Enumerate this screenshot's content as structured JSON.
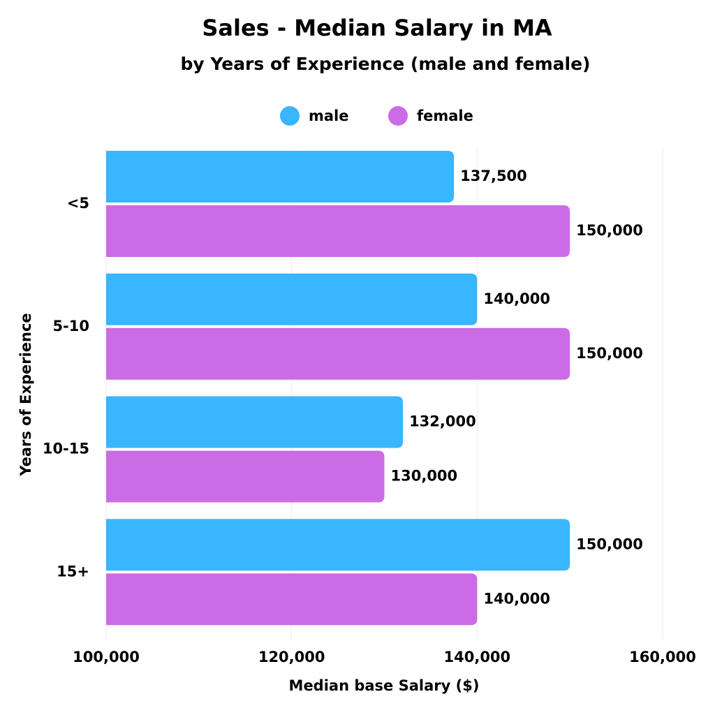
{
  "chart_data": {
    "type": "bar",
    "orientation": "horizontal",
    "title": "Sales - Median Salary in MA",
    "subtitle": "by Years of Experience (male and female)",
    "x_label": "Median base Salary ($)",
    "y_label": "Years of Experience",
    "categories": [
      "<5",
      "5-10",
      "10-15",
      "15+"
    ],
    "series": [
      {
        "name": "male",
        "color": "#38b6ff",
        "values": [
          137500,
          140000,
          132000,
          150000
        ],
        "value_labels": [
          "137,500",
          "140,000",
          "132,000",
          "150,000"
        ]
      },
      {
        "name": "female",
        "color": "#cb6ce6",
        "values": [
          150000,
          150000,
          130000,
          140000
        ],
        "value_labels": [
          "150,000",
          "150,000",
          "130,000",
          "140,000"
        ]
      }
    ],
    "xlim": [
      100000,
      160000
    ],
    "xticks": [
      {
        "value": 100000,
        "label": "100,000"
      },
      {
        "value": 120000,
        "label": "120,000"
      },
      {
        "value": 140000,
        "label": "140,000"
      },
      {
        "value": 160000,
        "label": "160,000"
      }
    ],
    "grid": true
  }
}
